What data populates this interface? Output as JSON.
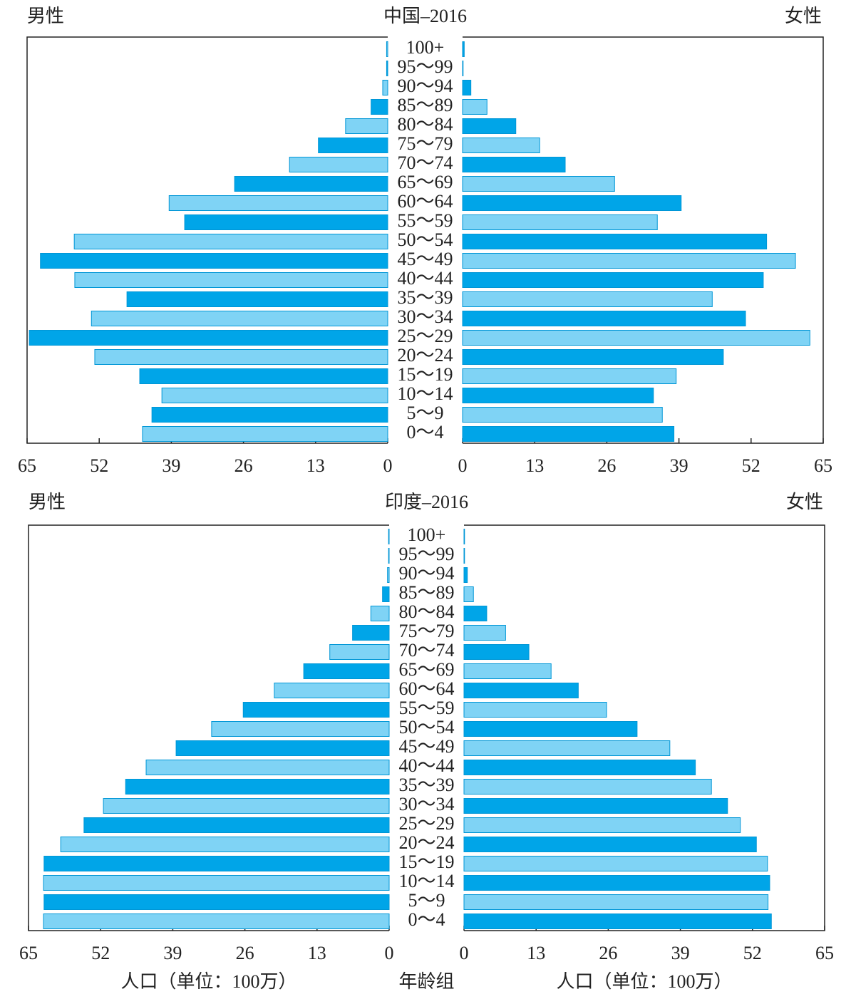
{
  "chart_data": [
    {
      "type": "pyramid",
      "title": "中国–2016",
      "categories": [
        "100+",
        "95～99",
        "90～94",
        "85～89",
        "80～84",
        "75～79",
        "70～74",
        "65～69",
        "60～64",
        "55～59",
        "50～54",
        "45～49",
        "40～44",
        "35～39",
        "30～34",
        "25～29",
        "20～24",
        "15～19",
        "10～14",
        "5～9",
        "0～4"
      ],
      "series": [
        {
          "name": "男性",
          "colors": [
            "#7fd3f5",
            "#00a5e8"
          ],
          "values": [
            0.2,
            0.2,
            0.9,
            3.0,
            7.6,
            12.5,
            17.7,
            27.6,
            39.4,
            36.6,
            56.5,
            62.6,
            56.4,
            47.0,
            53.4,
            64.6,
            52.8,
            44.7,
            40.7,
            42.5,
            44.2
          ]
        },
        {
          "name": "女性",
          "colors": [
            "#00a5e8",
            "#7fd3f5"
          ],
          "values": [
            0.3,
            0.1,
            1.5,
            4.4,
            9.6,
            13.9,
            18.5,
            27.4,
            39.4,
            35.1,
            54.8,
            60.0,
            54.2,
            45.0,
            51.0,
            62.6,
            47.0,
            38.5,
            34.4,
            36.0,
            38.1
          ]
        }
      ],
      "xlim": [
        0,
        65
      ],
      "xticks": [
        0,
        13,
        26,
        39,
        52,
        65
      ]
    },
    {
      "type": "pyramid",
      "title": "印度–2016",
      "categories": [
        "100+",
        "95～99",
        "90～94",
        "85～89",
        "80～84",
        "75～79",
        "70～74",
        "65～69",
        "60～64",
        "55～59",
        "50～54",
        "45～49",
        "40～44",
        "35～39",
        "30～34",
        "25～29",
        "20～24",
        "15～19",
        "10～14",
        "5～9",
        "0～4"
      ],
      "series": [
        {
          "name": "男性",
          "colors": [
            "#7fd3f5",
            "#00a5e8"
          ],
          "values": [
            0.1,
            0.1,
            0.3,
            1.2,
            3.3,
            6.6,
            10.7,
            15.4,
            20.7,
            26.3,
            32.0,
            38.4,
            43.8,
            47.5,
            51.5,
            55.0,
            59.2,
            62.2,
            62.3,
            62.2,
            62.3
          ]
        },
        {
          "name": "女性",
          "colors": [
            "#00a5e8",
            "#7fd3f5"
          ],
          "values": [
            0.1,
            0.1,
            0.6,
            1.7,
            4.1,
            7.5,
            11.7,
            15.7,
            20.6,
            25.7,
            31.2,
            37.1,
            41.7,
            44.6,
            47.5,
            49.8,
            52.7,
            54.7,
            55.1,
            54.8,
            55.4
          ]
        }
      ],
      "xlim": [
        0,
        65
      ],
      "xticks": [
        0,
        13,
        26,
        39,
        52,
        65
      ],
      "xlabel": "人口（单位：100万）",
      "category_label": "年龄组"
    }
  ]
}
